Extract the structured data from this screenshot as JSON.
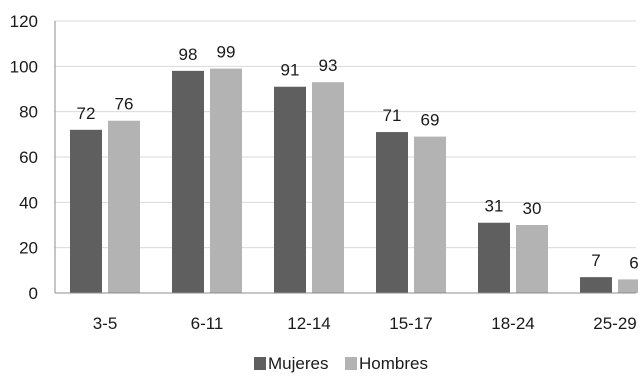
{
  "chart_data": {
    "type": "bar",
    "categories": [
      "3-5",
      "6-11",
      "12-14",
      "15-17",
      "18-24",
      "25-29"
    ],
    "series": [
      {
        "name": "Mujeres",
        "values": [
          72,
          98,
          91,
          71,
          31,
          7
        ],
        "color": "#5f5f5f"
      },
      {
        "name": "Hombres",
        "values": [
          76,
          99,
          93,
          69,
          30,
          6
        ],
        "color": "#b3b3b3"
      }
    ],
    "ylim": [
      0,
      120
    ],
    "yticks": [
      0,
      20,
      40,
      60,
      80,
      100,
      120
    ],
    "grid": true,
    "legend": "bottom",
    "data_labels": true
  }
}
